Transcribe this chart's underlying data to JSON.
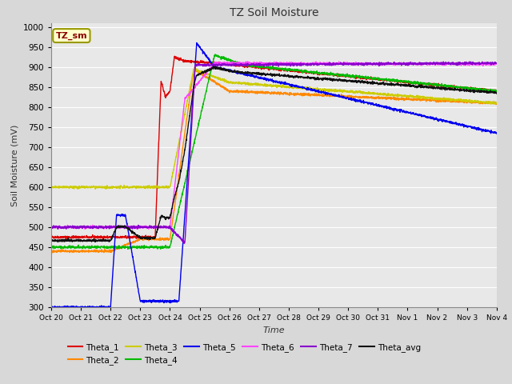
{
  "title": "TZ Soil Moisture",
  "xlabel": "Time",
  "ylabel": "Soil Moisture (mV)",
  "ylim": [
    300,
    1010
  ],
  "yticks": [
    300,
    350,
    400,
    450,
    500,
    550,
    600,
    650,
    700,
    750,
    800,
    850,
    900,
    950,
    1000
  ],
  "annotation_label": "TZ_sm",
  "bg_color": "#d8d8d8",
  "plot_bg_color": "#e8e8e8",
  "grid_color": "#ffffff",
  "series": {
    "Theta_1": {
      "color": "#dd0000"
    },
    "Theta_2": {
      "color": "#ff8800"
    },
    "Theta_3": {
      "color": "#cccc00"
    },
    "Theta_4": {
      "color": "#00bb00"
    },
    "Theta_5": {
      "color": "#0000ee"
    },
    "Theta_6": {
      "color": "#ff44ff"
    },
    "Theta_7": {
      "color": "#8800cc"
    },
    "Theta_avg": {
      "color": "#111111"
    }
  },
  "x_tick_labels": [
    "Oct 20",
    "Oct 21",
    "Oct 22",
    "Oct 23",
    "Oct 24",
    "Oct 25",
    "Oct 26",
    "Oct 27",
    "Oct 28",
    "Oct 29",
    "Oct 30",
    "Oct 31",
    "Nov 1",
    "Nov 2",
    "Nov 3",
    "Nov 4"
  ]
}
